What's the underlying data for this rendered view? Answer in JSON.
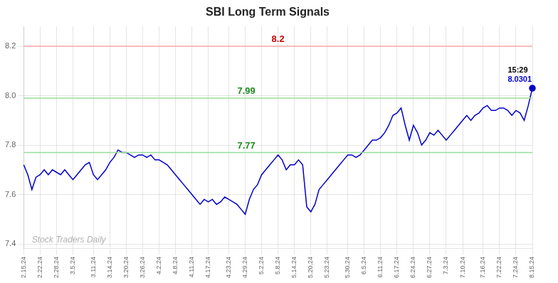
{
  "chart_data": {
    "type": "line",
    "title": "SBI Long Term Signals",
    "categories": [
      "2.15.24",
      null,
      null,
      null,
      "2.22.24",
      null,
      null,
      null,
      "2.28.24",
      null,
      null,
      null,
      "3.5.24",
      null,
      null,
      null,
      null,
      "3.11.24",
      null,
      null,
      null,
      "3.14.24",
      null,
      null,
      null,
      "3.20.24",
      null,
      null,
      null,
      "3.26.24",
      null,
      null,
      null,
      "4.2.24",
      null,
      null,
      null,
      "4.8.24",
      null,
      null,
      null,
      "4.11.24",
      null,
      null,
      null,
      "4.17.24",
      null,
      null,
      null,
      null,
      "4.23.24",
      null,
      null,
      null,
      "4.29.24",
      null,
      null,
      null,
      "5.2.24",
      null,
      null,
      null,
      "5.8.24",
      null,
      null,
      null,
      "5.14.24",
      null,
      null,
      null,
      "5.20.24",
      null,
      null,
      null,
      "5.23.24",
      null,
      null,
      null,
      null,
      "5.30.24",
      null,
      null,
      null,
      "6.5.24",
      null,
      null,
      null,
      "6.11.24",
      null,
      null,
      null,
      "6.17.24",
      null,
      null,
      null,
      "6.24.24",
      null,
      null,
      null,
      "6.27.24",
      null,
      null,
      null,
      "7.3.24",
      null,
      null,
      null,
      "7.10.24",
      null,
      null,
      null,
      null,
      "7.16.24",
      null,
      null,
      null,
      "7.22.24",
      null,
      null,
      null,
      "7.24.24",
      null,
      null,
      null,
      "8.15.24"
    ],
    "values": [
      7.72,
      7.68,
      7.62,
      7.67,
      7.68,
      7.7,
      7.68,
      7.7,
      7.69,
      7.68,
      7.7,
      7.68,
      7.66,
      7.68,
      7.7,
      7.72,
      7.73,
      7.68,
      7.66,
      7.68,
      7.7,
      7.73,
      7.75,
      7.78,
      7.77,
      7.77,
      7.76,
      7.75,
      7.76,
      7.76,
      7.75,
      7.76,
      7.74,
      7.74,
      7.73,
      7.72,
      7.7,
      7.68,
      7.66,
      7.64,
      7.62,
      7.6,
      7.58,
      7.56,
      7.58,
      7.57,
      7.58,
      7.56,
      7.57,
      7.59,
      7.58,
      7.57,
      7.56,
      7.54,
      7.52,
      7.58,
      7.62,
      7.64,
      7.68,
      7.7,
      7.72,
      7.74,
      7.76,
      7.74,
      7.7,
      7.72,
      7.72,
      7.74,
      7.72,
      7.55,
      7.53,
      7.56,
      7.62,
      7.64,
      7.66,
      7.68,
      7.7,
      7.72,
      7.74,
      7.76,
      7.76,
      7.75,
      7.76,
      7.78,
      7.8,
      7.82,
      7.82,
      7.83,
      7.85,
      7.88,
      7.92,
      7.93,
      7.95,
      7.88,
      7.82,
      7.88,
      7.85,
      7.8,
      7.82,
      7.85,
      7.84,
      7.86,
      7.84,
      7.82,
      7.84,
      7.86,
      7.88,
      7.9,
      7.92,
      7.9,
      7.92,
      7.93,
      7.95,
      7.96,
      7.94,
      7.94,
      7.95,
      7.95,
      7.94,
      7.92,
      7.94,
      7.93,
      7.9,
      7.96,
      8.0301
    ],
    "color": "#0000cc",
    "ylim": [
      7.38,
      8.28
    ],
    "yticks": [
      7.4,
      7.6,
      7.8,
      {
        "value": 8,
        "label": "8.0"
      },
      8.2
    ],
    "grid": true,
    "hlines": [
      {
        "value": 8.2,
        "color": "#ffaaaa",
        "label": "8.2",
        "label_color": "#cc0000"
      },
      {
        "value": 7.99,
        "color": "#99dd99",
        "label": "7.99",
        "label_color": "#228B22"
      },
      {
        "value": 7.77,
        "color": "#99dd99",
        "label": "7.77",
        "label_color": "#228B22"
      }
    ],
    "last_point_labels": [
      "15:29",
      "8.0301"
    ],
    "watermark": "Stock Traders Daily"
  }
}
